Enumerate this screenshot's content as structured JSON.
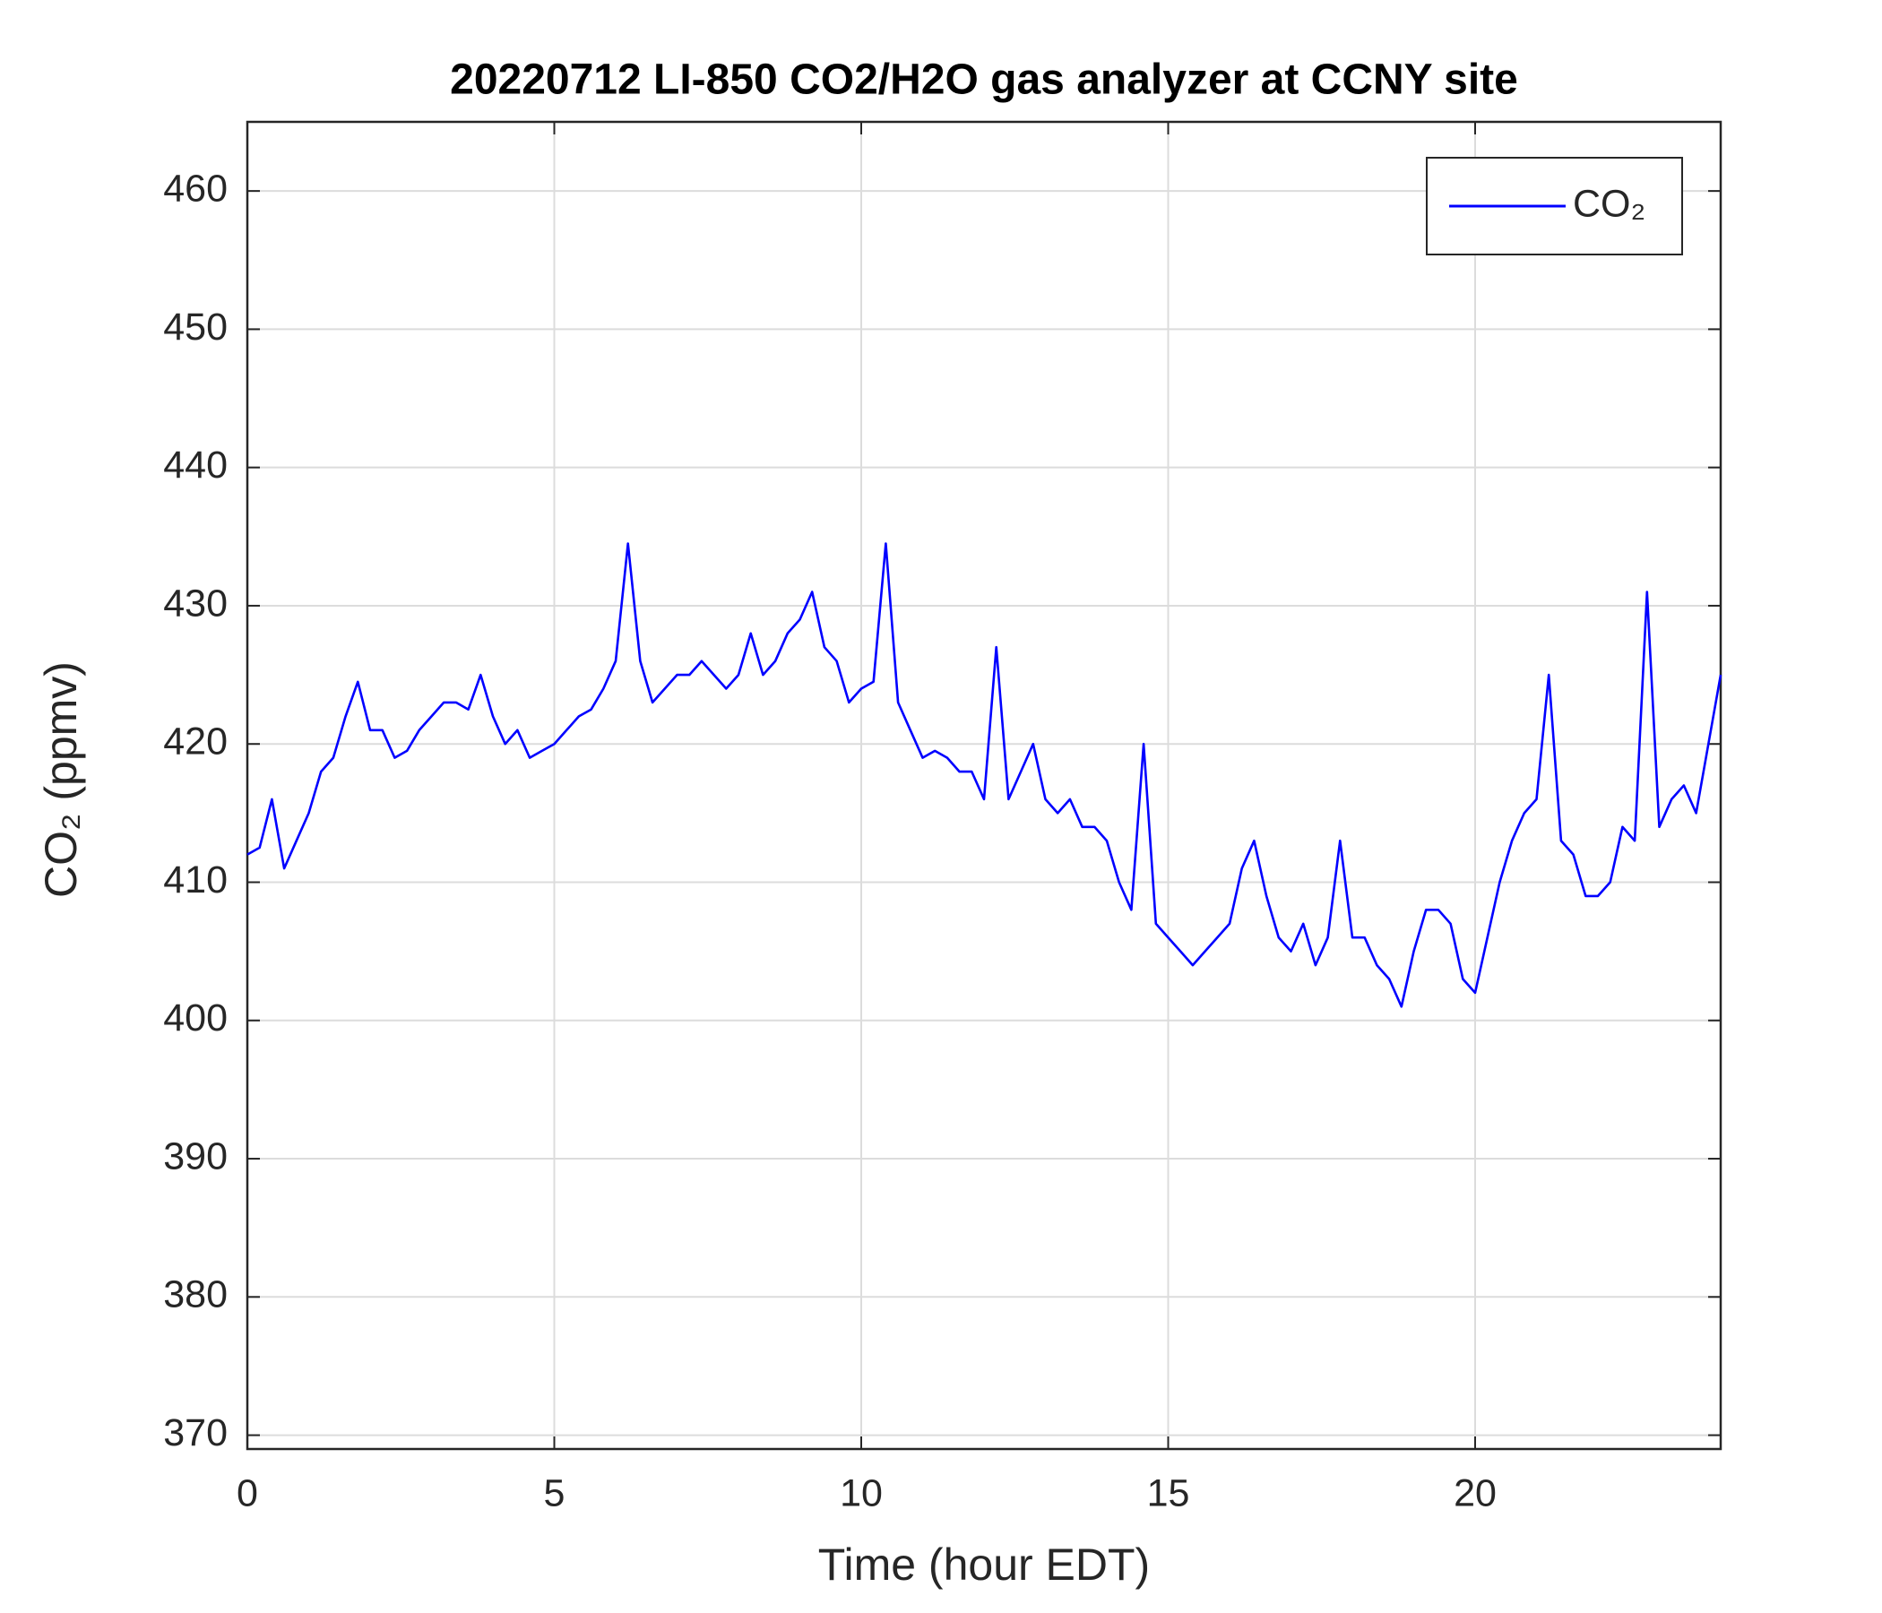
{
  "chart_data": {
    "type": "line",
    "title": "20220712 LI-850 CO2/H2O gas analyzer at CCNY site",
    "x_label": "Time (hour EDT)",
    "y_label": "CO₂ (ppmv)",
    "xlim": [
      0,
      24
    ],
    "xticks": [
      0,
      5,
      10,
      15,
      20
    ],
    "ylim": [
      369,
      465
    ],
    "yticks": [
      370,
      380,
      390,
      400,
      410,
      420,
      430,
      440,
      450,
      460
    ],
    "grid": true,
    "legend": "upper right",
    "x": [
      0,
      0.2,
      0.4,
      0.6,
      0.8,
      1,
      1.2,
      1.4,
      1.6,
      1.8,
      2,
      2.2,
      2.4,
      2.6,
      2.8,
      3,
      3.2,
      3.4,
      3.6,
      3.8,
      4,
      4.2,
      4.4,
      4.6,
      4.8,
      5,
      5.2,
      5.4,
      5.6,
      5.8,
      6,
      6.2,
      6.4,
      6.6,
      6.8,
      7,
      7.2,
      7.4,
      7.6,
      7.8,
      8,
      8.2,
      8.4,
      8.6,
      8.8,
      9,
      9.2,
      9.4,
      9.6,
      9.8,
      10,
      10.2,
      10.4,
      10.6,
      10.8,
      11,
      11.2,
      11.4,
      11.6,
      11.8,
      12,
      12.2,
      12.4,
      12.6,
      12.8,
      13,
      13.2,
      13.4,
      13.6,
      13.8,
      14,
      14.2,
      14.4,
      14.6,
      14.8,
      15,
      15.2,
      15.4,
      15.6,
      15.8,
      16,
      16.2,
      16.4,
      16.6,
      16.8,
      17,
      17.2,
      17.4,
      17.6,
      17.8,
      18,
      18.2,
      18.4,
      18.6,
      18.8,
      19,
      19.2,
      19.4,
      19.6,
      19.8,
      20,
      20.2,
      20.4,
      20.6,
      20.8,
      21,
      21.2,
      21.4,
      21.6,
      21.8,
      22,
      22.2,
      22.4,
      22.6,
      22.8,
      23,
      23.2,
      23.4,
      23.6,
      23.8,
      24
    ],
    "series": [
      {
        "name": "CO₂",
        "color": "#0000ff",
        "values": [
          412,
          412.5,
          416,
          411,
          413,
          415,
          418,
          419,
          422,
          424.5,
          421,
          421,
          419,
          419.5,
          421,
          422,
          423,
          423,
          422.5,
          425,
          422,
          420,
          421,
          419,
          419.5,
          420,
          421,
          422,
          422.5,
          424,
          426,
          434.5,
          426,
          423,
          424,
          425,
          425,
          426,
          425,
          424,
          425,
          428,
          425,
          426,
          428,
          429,
          431,
          427,
          426,
          423,
          424,
          424.5,
          434.5,
          423,
          421,
          419,
          419.5,
          419,
          418,
          418,
          416,
          427,
          416,
          418,
          420,
          416,
          415,
          416,
          414,
          414,
          413,
          410,
          408,
          420,
          407,
          406,
          405,
          404,
          405,
          406,
          407,
          411,
          413,
          409,
          406,
          405,
          407,
          404,
          406,
          413,
          406,
          406,
          404,
          403,
          401,
          405,
          408,
          408,
          407,
          403,
          402,
          406,
          410,
          413,
          415,
          416,
          425,
          413,
          412,
          409,
          409,
          410,
          414,
          413,
          431,
          414,
          416,
          417,
          415,
          420,
          425
        ]
      }
    ]
  }
}
